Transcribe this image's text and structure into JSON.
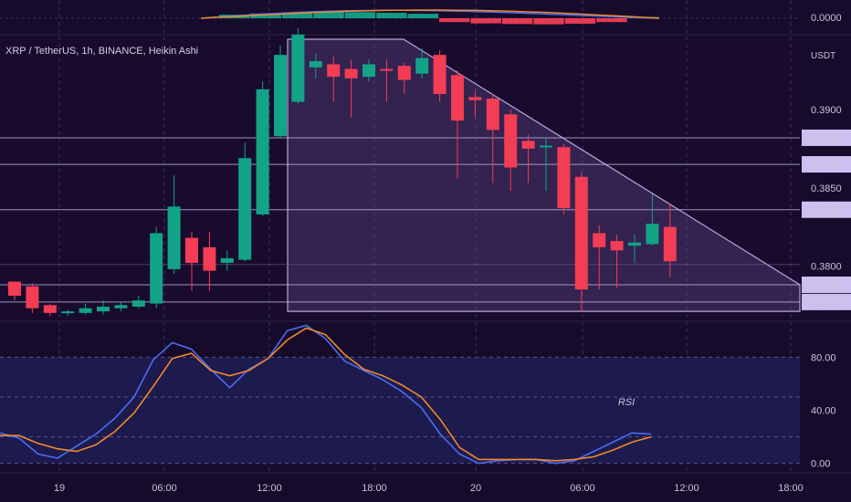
{
  "symbol_title": "XRP / TetherUS, 1h, BINANCE, Heikin Ashi",
  "currency": "USDT",
  "rsi_label": "RSI",
  "colors": {
    "background": "#170b2c",
    "bull": "#13a386",
    "bear": "#f23d55",
    "triangle_stroke": "#b7a6d9",
    "triangle_fill": "#6a4c93",
    "rsi_band": "#1f1d55",
    "rsi_blue": "#4a6cf0",
    "rsi_orange": "#f08a2a",
    "level_box": "#cdbff0",
    "rsi_text": "#f0a020"
  },
  "chart_data": [
    {
      "type": "bar",
      "title": "",
      "series": [
        {
          "name": "",
          "values": [
            0.55,
            0.75,
            0.9,
            1.0,
            0.95,
            0.85,
            0.7,
            -0.6,
            -0.8,
            -0.9,
            -0.95,
            -0.85,
            -0.6,
            0.2
          ]
        }
      ],
      "ylabels": [
        "0.0000"
      ]
    },
    {
      "type": "candlestick",
      "title": "XRP / TetherUS, 1h, BINANCE, Heikin Ashi",
      "ylabel": "USDT",
      "y_ticks": [
        "0.3900",
        "0.3850",
        "0.3800"
      ],
      "levels": [
        "0.3882",
        "0.3865",
        "0.3836",
        "0.3788",
        "0.3777"
      ],
      "ylim": [
        0.3767,
        0.3945
      ],
      "x_ticks": [
        "19",
        "06:00",
        "12:00",
        "18:00",
        "20",
        "06:00",
        "12:00",
        "18:00"
      ],
      "candles": [
        {
          "o": 0.379,
          "c": 0.3781,
          "h": 0.379,
          "l": 0.3778
        },
        {
          "o": 0.3787,
          "c": 0.3773,
          "h": 0.3789,
          "l": 0.377
        },
        {
          "o": 0.3775,
          "c": 0.377,
          "h": 0.3776,
          "l": 0.3768
        },
        {
          "o": 0.377,
          "c": 0.3771,
          "h": 0.3772,
          "l": 0.3768
        },
        {
          "o": 0.377,
          "c": 0.3773,
          "h": 0.3776,
          "l": 0.3769
        },
        {
          "o": 0.3771,
          "c": 0.3774,
          "h": 0.3778,
          "l": 0.3769
        },
        {
          "o": 0.3773,
          "c": 0.3775,
          "h": 0.3777,
          "l": 0.3771
        },
        {
          "o": 0.3774,
          "c": 0.3778,
          "h": 0.3781,
          "l": 0.3773
        },
        {
          "o": 0.3776,
          "c": 0.3821,
          "h": 0.3825,
          "l": 0.3773
        },
        {
          "o": 0.3798,
          "c": 0.3838,
          "h": 0.3858,
          "l": 0.3795
        },
        {
          "o": 0.3818,
          "c": 0.3802,
          "h": 0.3822,
          "l": 0.3784
        },
        {
          "o": 0.3812,
          "c": 0.3797,
          "h": 0.3822,
          "l": 0.3784
        },
        {
          "o": 0.3802,
          "c": 0.3805,
          "h": 0.381,
          "l": 0.3797
        },
        {
          "o": 0.3804,
          "c": 0.3869,
          "h": 0.3879,
          "l": 0.3803
        },
        {
          "o": 0.3833,
          "c": 0.3913,
          "h": 0.3918,
          "l": 0.3832
        },
        {
          "o": 0.3883,
          "c": 0.3935,
          "h": 0.3941,
          "l": 0.3882
        },
        {
          "o": 0.3905,
          "c": 0.3948,
          "h": 0.3952,
          "l": 0.3904
        },
        {
          "o": 0.3927,
          "c": 0.3931,
          "h": 0.3936,
          "l": 0.392
        },
        {
          "o": 0.3929,
          "c": 0.3921,
          "h": 0.3934,
          "l": 0.3905
        },
        {
          "o": 0.3926,
          "c": 0.392,
          "h": 0.3932,
          "l": 0.3895
        },
        {
          "o": 0.3921,
          "c": 0.3929,
          "h": 0.3932,
          "l": 0.3918
        },
        {
          "o": 0.3926,
          "c": 0.3925,
          "h": 0.3932,
          "l": 0.3905
        },
        {
          "o": 0.3928,
          "c": 0.3919,
          "h": 0.393,
          "l": 0.391
        },
        {
          "o": 0.3923,
          "c": 0.3933,
          "h": 0.3939,
          "l": 0.392
        },
        {
          "o": 0.3935,
          "c": 0.391,
          "h": 0.3938,
          "l": 0.3905
        },
        {
          "o": 0.3922,
          "c": 0.3893,
          "h": 0.3925,
          "l": 0.3856
        },
        {
          "o": 0.3908,
          "c": 0.3906,
          "h": 0.3912,
          "l": 0.3895
        },
        {
          "o": 0.3907,
          "c": 0.3887,
          "h": 0.391,
          "l": 0.3853
        },
        {
          "o": 0.3897,
          "c": 0.3863,
          "h": 0.39,
          "l": 0.3848
        },
        {
          "o": 0.388,
          "c": 0.3875,
          "h": 0.3884,
          "l": 0.3853
        },
        {
          "o": 0.3877,
          "c": 0.3877,
          "h": 0.3882,
          "l": 0.3848
        },
        {
          "o": 0.3876,
          "c": 0.3837,
          "h": 0.3878,
          "l": 0.3833
        },
        {
          "o": 0.3857,
          "c": 0.3785,
          "h": 0.386,
          "l": 0.3771
        },
        {
          "o": 0.3821,
          "c": 0.3812,
          "h": 0.3826,
          "l": 0.3785
        },
        {
          "o": 0.3816,
          "c": 0.381,
          "h": 0.382,
          "l": 0.3786
        },
        {
          "o": 0.3813,
          "c": 0.3815,
          "h": 0.382,
          "l": 0.3802
        },
        {
          "o": 0.3814,
          "c": 0.3827,
          "h": 0.3846,
          "l": 0.3813
        },
        {
          "o": 0.3825,
          "c": 0.3803,
          "h": 0.384,
          "l": 0.3793
        }
      ]
    },
    {
      "type": "line",
      "title": "RSI",
      "y_ticks": [
        "80.00",
        "40.00",
        "0.00"
      ],
      "ylim": [
        -5,
        105
      ],
      "band": [
        0,
        80
      ],
      "series": [
        {
          "name": "",
          "values": [
            23,
            19,
            7,
            4,
            13,
            22,
            34,
            50,
            78,
            91,
            86,
            71,
            57,
            71,
            79,
            100,
            104,
            94,
            77,
            70,
            63,
            54,
            42,
            22,
            7,
            0,
            2,
            3,
            3,
            0,
            2,
            9,
            16,
            23,
            22
          ]
        },
        {
          "name": "",
          "values": [
            21,
            21,
            15,
            11,
            9,
            14,
            24,
            38,
            58,
            79,
            83,
            70,
            66,
            70,
            79,
            93,
            102,
            97,
            82,
            71,
            66,
            59,
            50,
            33,
            12,
            3,
            3,
            3,
            3,
            2,
            3,
            5,
            10,
            16,
            20
          ]
        }
      ]
    }
  ]
}
